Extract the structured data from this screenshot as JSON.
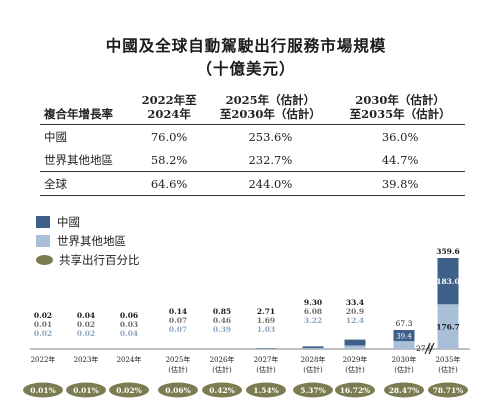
{
  "title_line1": "中國及全球自動駕駛出行服務市場規模",
  "title_line2": "（十億美元）",
  "cagr_table": {
    "col_header_rowlabel": "複合年增長率",
    "col_headers": [
      {
        "line1": "2022年至",
        "line2": "2024年"
      },
      {
        "line1": "2025年（估計）",
        "line2": "至2030年（估計）"
      },
      {
        "line1": "2030年（估計）",
        "line2": "至2035年（估計）"
      }
    ],
    "rows": [
      {
        "label": "中國",
        "values": [
          "76.0%",
          "253.6%",
          "36.0%"
        ]
      },
      {
        "label": "世界其他地區",
        "values": [
          "58.2%",
          "232.7%",
          "44.7%"
        ]
      },
      {
        "label": "全球",
        "values": [
          "64.6%",
          "244.0%",
          "39.8%"
        ]
      }
    ]
  },
  "legend": {
    "china": "中國",
    "rest_of_world": "世界其他地區",
    "shared_share": "共享出行百分比"
  },
  "colors": {
    "china": "#3e5f88",
    "rest_of_world": "#a9bfd7",
    "total_label": "#1a1a1a",
    "china_label": "#6e6e6e",
    "row_label": "#8da4c0",
    "oval": "#7b7c52",
    "oval_text": "#ffffff"
  },
  "chart_data": {
    "type": "bar",
    "stacked": true,
    "categories": [
      {
        "line1": "2022年",
        "line2": ""
      },
      {
        "line1": "2023年",
        "line2": ""
      },
      {
        "line1": "2024年",
        "line2": ""
      },
      {
        "line1": "2025年",
        "line2": "(估計)"
      },
      {
        "line1": "2026年",
        "line2": "(估計)"
      },
      {
        "line1": "2027年",
        "line2": "(估計)"
      },
      {
        "line1": "2028年",
        "line2": "(估計)"
      },
      {
        "line1": "2029年",
        "line2": "(估計)"
      },
      {
        "line1": "2030年",
        "line2": "(估計)"
      },
      {
        "line1": "2035年",
        "line2": "(估計)"
      }
    ],
    "totals": [
      "0.02",
      "0.04",
      "0.06",
      "0.14",
      "0.85",
      "2.71",
      "9.30",
      "33.4",
      "67.3",
      "359.6"
    ],
    "series": [
      {
        "name": "中國",
        "values": [
          "0.01",
          "0.02",
          "0.03",
          "0.07",
          "0.46",
          "1.69",
          "6.08",
          "20.9",
          "39.4",
          "183.0"
        ]
      },
      {
        "name": "世界其他地區",
        "values": [
          "0.02",
          "0.02",
          "0.04",
          "0.07",
          "0.39",
          "1.03",
          "3.22",
          "12.4",
          "27.9",
          "176.7"
        ]
      }
    ],
    "shared_mobility_percentage": [
      "0.01%",
      "0.01%",
      "0.02%",
      "0.06%",
      "0.42%",
      "1.54%",
      "5.37%",
      "16.72%",
      "28.47%",
      "78.71%"
    ],
    "axis_break_before_last": true
  }
}
